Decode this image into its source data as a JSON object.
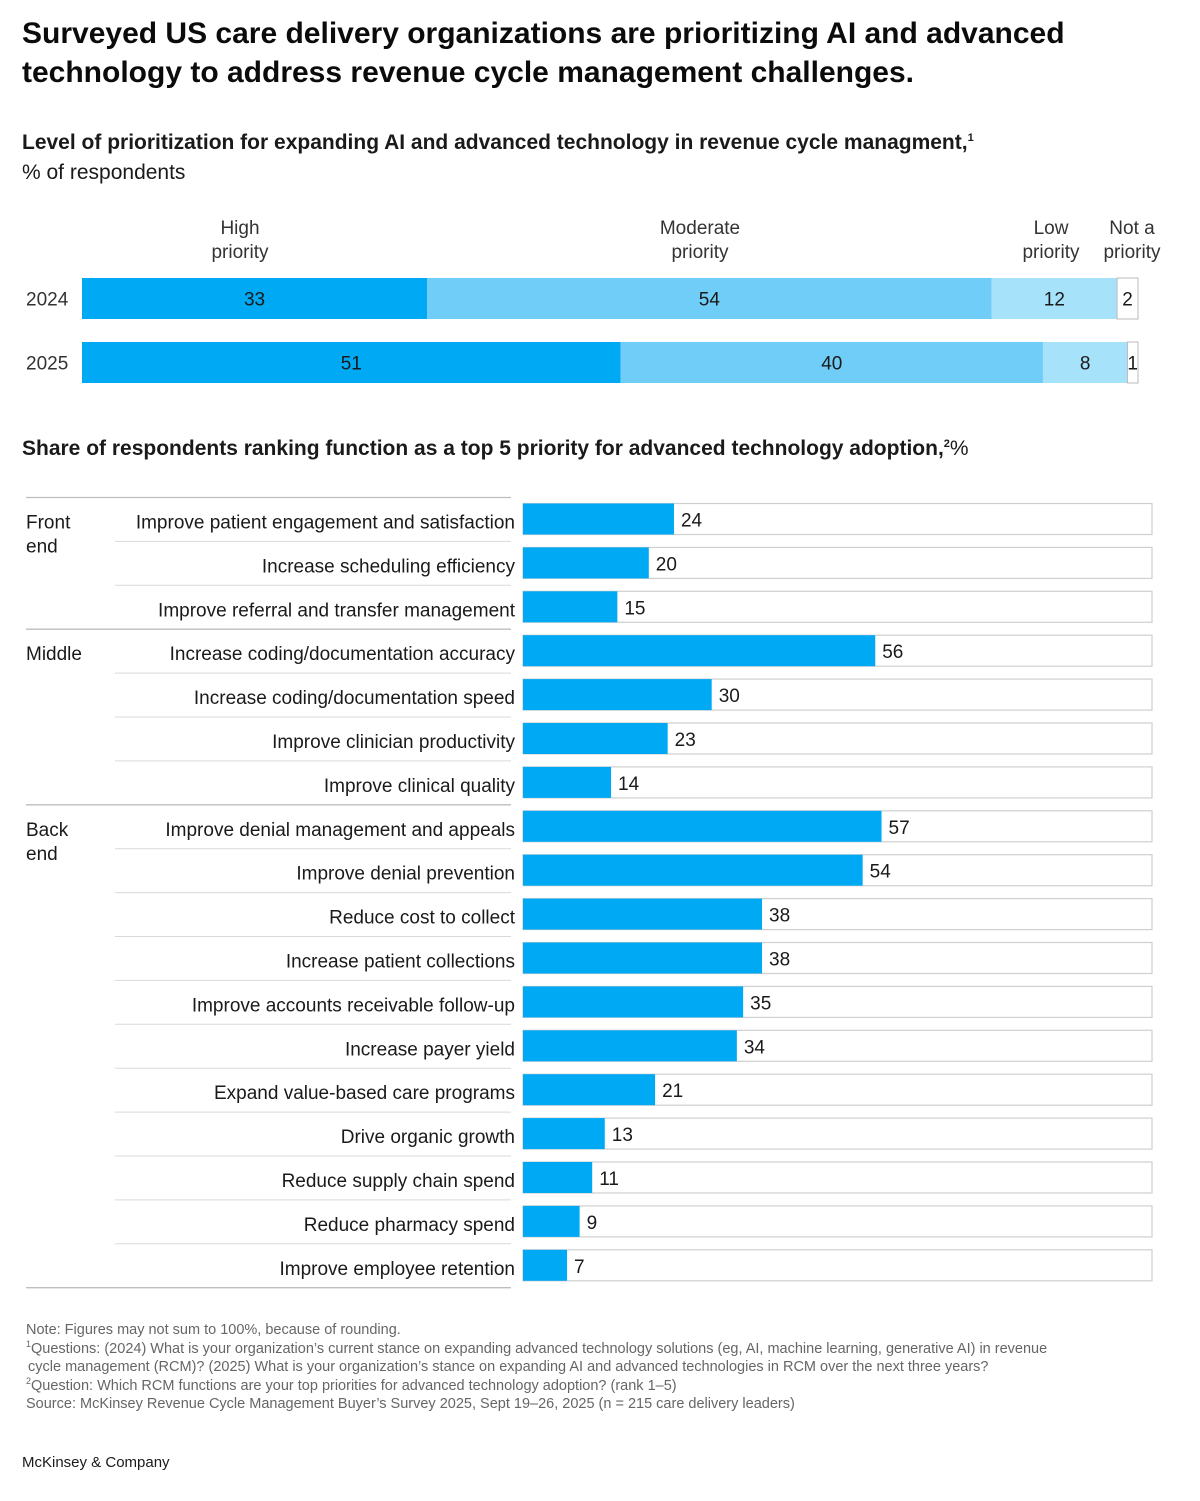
{
  "title": "Surveyed US care delivery organizations are prioritizing AI and advanced technology to address revenue cycle management challenges.",
  "colors": {
    "high": "#00a9f4",
    "moderate": "#6fcdf7",
    "low": "#a6e3fa",
    "not": "#ffffff",
    "bar": "#00a9f4",
    "track_border": "#cfcfcf",
    "divider": "#bdbdbd"
  },
  "chart_data": [
    {
      "type": "bar",
      "orientation": "horizontal",
      "stacked": true,
      "title": "Level of prioritization for expanding AI and advanced technology in revenue cycle managment,",
      "title_footnote": "1",
      "subtitle": "% of respondents",
      "categories": [
        "2024",
        "2025"
      ],
      "series": [
        {
          "name": "High priority",
          "label_lines": [
            "High",
            "priority"
          ],
          "values": [
            33,
            51
          ]
        },
        {
          "name": "Moderate priority",
          "label_lines": [
            "Moderate",
            "priority"
          ],
          "values": [
            54,
            40
          ]
        },
        {
          "name": "Low priority",
          "label_lines": [
            "Low",
            "priority"
          ],
          "values": [
            12,
            8
          ]
        },
        {
          "name": "Not a priority",
          "label_lines": [
            "Not a",
            "priority"
          ],
          "values": [
            2,
            1
          ]
        }
      ],
      "legend": "top"
    },
    {
      "type": "bar",
      "orientation": "horizontal",
      "title": "Share of respondents ranking function as a top 5 priority for advanced technology adoption,",
      "title_footnote": "2",
      "unit": "%",
      "xlim": [
        0,
        100
      ],
      "groups": [
        {
          "label_lines": [
            "Front",
            "end"
          ],
          "items": [
            {
              "label": "Improve patient engagement and satisfaction",
              "value": 24
            },
            {
              "label": "Increase scheduling efficiency",
              "value": 20
            },
            {
              "label": "Improve referral and transfer management",
              "value": 15
            }
          ]
        },
        {
          "label_lines": [
            "Middle"
          ],
          "items": [
            {
              "label": "Increase coding/documentation accuracy",
              "value": 56
            },
            {
              "label": "Increase coding/documentation speed",
              "value": 30
            },
            {
              "label": "Improve clinician productivity",
              "value": 23
            },
            {
              "label": "Improve clinical quality",
              "value": 14
            }
          ]
        },
        {
          "label_lines": [
            "Back",
            "end"
          ],
          "items": [
            {
              "label": "Improve denial management and appeals",
              "value": 57
            },
            {
              "label": "Improve denial prevention",
              "value": 54
            },
            {
              "label": "Reduce cost to collect",
              "value": 38
            },
            {
              "label": "Increase patient collections",
              "value": 38
            },
            {
              "label": "Improve accounts receivable follow-up",
              "value": 35
            },
            {
              "label": "Increase payer yield",
              "value": 34
            },
            {
              "label": "Expand value-based care programs",
              "value": 21
            },
            {
              "label": "Drive organic growth",
              "value": 13
            },
            {
              "label": "Reduce supply chain spend",
              "value": 11
            },
            {
              "label": "Reduce pharmacy spend",
              "value": 9
            },
            {
              "label": "Improve employee retention",
              "value": 7
            }
          ]
        }
      ]
    }
  ],
  "notes": {
    "note": "Note: Figures may not sum to 100%, because of rounding.",
    "fn1_mark": "1",
    "fn1_line1": "Questions: (2024) What is your organization’s current stance on expanding advanced technology solutions (eg, AI, machine learning, generative AI) in revenue",
    "fn1_line2": "cycle management (RCM)? (2025) What is your organization’s stance on expanding AI and advanced technologies in RCM over the next three years?",
    "fn2_mark": "2",
    "fn2": "Question: Which RCM functions are your top priorities for advanced technology adoption? (rank 1–5)",
    "source": "Source: McKinsey Revenue Cycle Management Buyer’s Survey 2025, Sept 19–26, 2025 (n = 215 care delivery leaders)"
  },
  "brand": "McKinsey & Company"
}
